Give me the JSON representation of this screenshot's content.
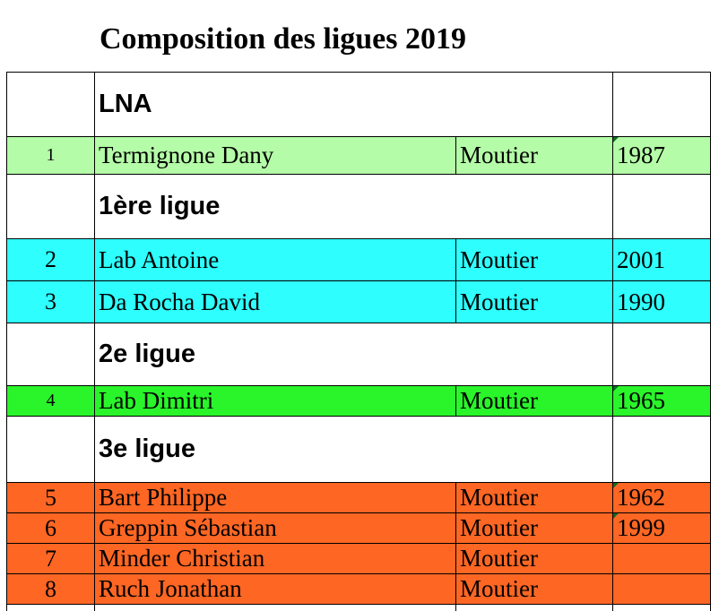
{
  "title": "Composition des ligues 2019",
  "colors": {
    "lna": "#b4fca7",
    "ligue1": "#2efefe",
    "ligue2": "#29f52a",
    "ligue3": "#fd6623",
    "comment_marker": "#0b6b24"
  },
  "sections": [
    {
      "label": "LNA",
      "players": [
        {
          "num": "1",
          "name": "Termignone Dany",
          "club": "Moutier",
          "year": "1987"
        }
      ]
    },
    {
      "label": "1ère ligue",
      "players": [
        {
          "num": "2",
          "name": "Lab Antoine",
          "club": "Moutier",
          "year": "2001"
        },
        {
          "num": "3",
          "name": "Da Rocha David",
          "club": "Moutier",
          "year": "1990"
        }
      ]
    },
    {
      "label": "2e ligue",
      "players": [
        {
          "num": "4",
          "name": "Lab Dimitri",
          "club": "Moutier",
          "year": "1965"
        }
      ]
    },
    {
      "label": "3e ligue",
      "players": [
        {
          "num": "5",
          "name": "Bart Philippe",
          "club": "Moutier",
          "year": "1962"
        },
        {
          "num": "6",
          "name": "Greppin Sébastian",
          "club": "Moutier",
          "year": "1999"
        },
        {
          "num": "7",
          "name": "Minder Christian",
          "club": "Moutier",
          "year": ""
        },
        {
          "num": "8",
          "name": "Ruch Jonathan",
          "club": "Moutier",
          "year": ""
        }
      ]
    }
  ]
}
